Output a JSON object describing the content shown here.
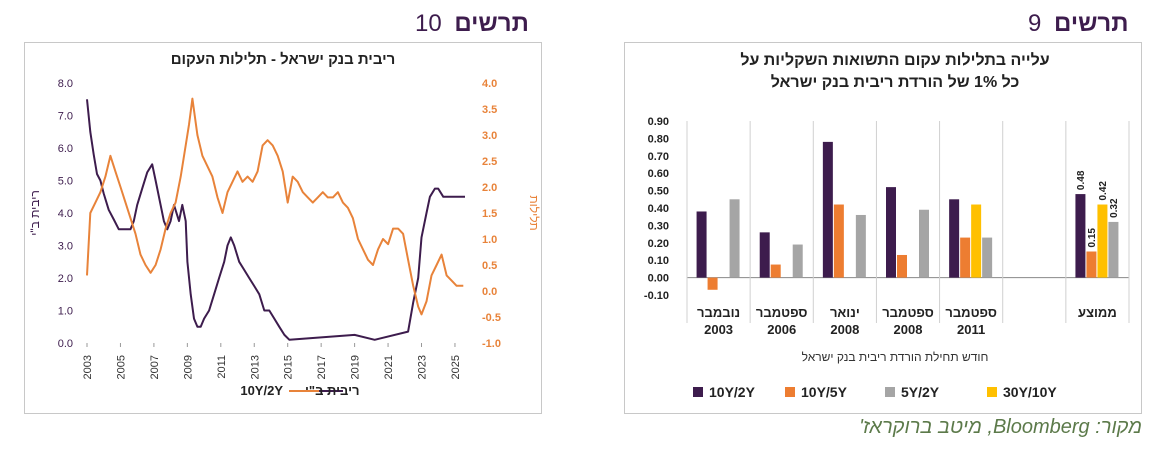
{
  "left_figure": {
    "title": "תרשים",
    "number": "10"
  },
  "right_figure": {
    "title": "תרשים",
    "number": "9"
  },
  "source": "מקור: Bloomberg, מיטב ברוקראז'",
  "chart_data": [
    {
      "type": "line",
      "title": "ריבית בנק ישראל - תלילות העקום",
      "ylabel": "ריבית ב\"י",
      "y2label": "תלילות",
      "x_ticks": [
        "2003",
        "2005",
        "2007",
        "2009",
        "2011",
        "2013",
        "2015",
        "2017",
        "2019",
        "2021",
        "2023",
        "2025"
      ],
      "ylim": [
        0,
        8
      ],
      "y_ticks": [
        "0.0",
        "1.0",
        "2.0",
        "3.0",
        "4.0",
        "5.0",
        "6.0",
        "7.0",
        "8.0"
      ],
      "y2lim": [
        -1,
        4
      ],
      "y2_ticks": [
        "-1.0",
        "-0.5",
        "0.0",
        "0.5",
        "1.0",
        "1.5",
        "2.0",
        "2.5",
        "3.0",
        "3.5",
        "4.0"
      ],
      "legend_position": "bottom",
      "grid": false,
      "series": [
        {
          "name": "ריבית ב\"י",
          "axis": "left",
          "color": "#3d1c4d",
          "points": [
            [
              2003.0,
              7.5
            ],
            [
              2003.2,
              6.5
            ],
            [
              2003.4,
              5.8
            ],
            [
              2003.6,
              5.2
            ],
            [
              2003.8,
              5.0
            ],
            [
              2004.0,
              4.6
            ],
            [
              2004.3,
              4.1
            ],
            [
              2004.6,
              3.8
            ],
            [
              2004.9,
              3.5
            ],
            [
              2005.6,
              3.5
            ],
            [
              2005.8,
              3.75
            ],
            [
              2006.0,
              4.25
            ],
            [
              2006.3,
              4.75
            ],
            [
              2006.6,
              5.25
            ],
            [
              2006.9,
              5.5
            ],
            [
              2007.1,
              5.0
            ],
            [
              2007.4,
              4.25
            ],
            [
              2007.6,
              3.75
            ],
            [
              2007.8,
              3.5
            ],
            [
              2008.0,
              3.75
            ],
            [
              2008.2,
              4.25
            ],
            [
              2008.5,
              3.75
            ],
            [
              2008.7,
              4.25
            ],
            [
              2008.9,
              3.75
            ],
            [
              2009.0,
              2.5
            ],
            [
              2009.2,
              1.5
            ],
            [
              2009.4,
              0.75
            ],
            [
              2009.6,
              0.5
            ],
            [
              2009.8,
              0.5
            ],
            [
              2010.0,
              0.75
            ],
            [
              2010.3,
              1.0
            ],
            [
              2010.6,
              1.5
            ],
            [
              2010.9,
              2.0
            ],
            [
              2011.2,
              2.5
            ],
            [
              2011.4,
              3.0
            ],
            [
              2011.6,
              3.25
            ],
            [
              2011.8,
              3.0
            ],
            [
              2012.1,
              2.5
            ],
            [
              2012.4,
              2.25
            ],
            [
              2012.7,
              2.0
            ],
            [
              2013.0,
              1.75
            ],
            [
              2013.3,
              1.5
            ],
            [
              2013.6,
              1.0
            ],
            [
              2013.9,
              1.0
            ],
            [
              2014.2,
              0.75
            ],
            [
              2014.5,
              0.5
            ],
            [
              2014.8,
              0.25
            ],
            [
              2015.1,
              0.1
            ],
            [
              2019.0,
              0.25
            ],
            [
              2020.2,
              0.1
            ],
            [
              2022.2,
              0.35
            ],
            [
              2022.5,
              1.25
            ],
            [
              2022.8,
              2.0
            ],
            [
              2023.0,
              3.25
            ],
            [
              2023.3,
              4.0
            ],
            [
              2023.5,
              4.5
            ],
            [
              2023.8,
              4.75
            ],
            [
              2024.0,
              4.75
            ],
            [
              2024.3,
              4.5
            ],
            [
              2025.6,
              4.5
            ]
          ]
        },
        {
          "name": "10Y/2Y",
          "axis": "right",
          "color": "#e8833a",
          "points": [
            [
              2003.0,
              0.3
            ],
            [
              2003.2,
              1.5
            ],
            [
              2003.5,
              1.7
            ],
            [
              2003.8,
              1.9
            ],
            [
              2004.1,
              2.2
            ],
            [
              2004.4,
              2.6
            ],
            [
              2004.7,
              2.3
            ],
            [
              2005.0,
              2.0
            ],
            [
              2005.3,
              1.7
            ],
            [
              2005.6,
              1.4
            ],
            [
              2005.9,
              1.1
            ],
            [
              2006.2,
              0.7
            ],
            [
              2006.5,
              0.5
            ],
            [
              2006.8,
              0.35
            ],
            [
              2007.1,
              0.5
            ],
            [
              2007.4,
              0.8
            ],
            [
              2007.7,
              1.2
            ],
            [
              2008.0,
              1.5
            ],
            [
              2008.3,
              1.7
            ],
            [
              2008.6,
              2.2
            ],
            [
              2008.9,
              2.8
            ],
            [
              2009.1,
              3.2
            ],
            [
              2009.3,
              3.7
            ],
            [
              2009.6,
              3.0
            ],
            [
              2009.9,
              2.6
            ],
            [
              2010.2,
              2.4
            ],
            [
              2010.5,
              2.2
            ],
            [
              2010.8,
              1.8
            ],
            [
              2011.1,
              1.5
            ],
            [
              2011.4,
              1.9
            ],
            [
              2011.7,
              2.1
            ],
            [
              2012.0,
              2.3
            ],
            [
              2012.3,
              2.1
            ],
            [
              2012.6,
              2.2
            ],
            [
              2012.9,
              2.1
            ],
            [
              2013.2,
              2.3
            ],
            [
              2013.5,
              2.8
            ],
            [
              2013.8,
              2.9
            ],
            [
              2014.1,
              2.8
            ],
            [
              2014.4,
              2.6
            ],
            [
              2014.7,
              2.3
            ],
            [
              2015.0,
              1.7
            ],
            [
              2015.3,
              2.2
            ],
            [
              2015.6,
              2.1
            ],
            [
              2015.9,
              1.9
            ],
            [
              2016.2,
              1.8
            ],
            [
              2016.5,
              1.7
            ],
            [
              2016.8,
              1.8
            ],
            [
              2017.1,
              1.9
            ],
            [
              2017.4,
              1.8
            ],
            [
              2017.7,
              1.8
            ],
            [
              2018.0,
              1.9
            ],
            [
              2018.3,
              1.7
            ],
            [
              2018.6,
              1.6
            ],
            [
              2018.9,
              1.4
            ],
            [
              2019.2,
              1.0
            ],
            [
              2019.5,
              0.8
            ],
            [
              2019.8,
              0.6
            ],
            [
              2020.1,
              0.5
            ],
            [
              2020.4,
              0.8
            ],
            [
              2020.7,
              1.0
            ],
            [
              2021.0,
              0.9
            ],
            [
              2021.3,
              1.2
            ],
            [
              2021.6,
              1.2
            ],
            [
              2021.9,
              1.1
            ],
            [
              2022.2,
              0.6
            ],
            [
              2022.5,
              0.1
            ],
            [
              2022.8,
              -0.3
            ],
            [
              2023.0,
              -0.45
            ],
            [
              2023.3,
              -0.2
            ],
            [
              2023.6,
              0.3
            ],
            [
              2023.9,
              0.5
            ],
            [
              2024.2,
              0.7
            ],
            [
              2024.5,
              0.3
            ],
            [
              2024.8,
              0.2
            ],
            [
              2025.1,
              0.1
            ],
            [
              2025.5,
              0.1
            ]
          ]
        }
      ],
      "legend": [
        {
          "label": "ריבית ב\"י",
          "color": "#3d1c4d"
        },
        {
          "label": "10Y/2Y",
          "color": "#e8833a"
        }
      ]
    },
    {
      "type": "bar",
      "title": [
        "עלייה בתלילות עקום התשואות השקליות על",
        "כל 1% של הורדת ריבית בנק ישראל"
      ],
      "xlabel": "חודש תחילת הורדת ריבית בנק ישראל",
      "ylim": [
        -0.1,
        0.9
      ],
      "y_ticks": [
        "-0.10",
        "0.00",
        "0.10",
        "0.20",
        "0.30",
        "0.40",
        "0.50",
        "0.60",
        "0.70",
        "0.80",
        "0.90"
      ],
      "grid": false,
      "legend_position": "bottom",
      "groups": [
        {
          "label": [
            "נובמבר",
            "2003"
          ],
          "values": [
            0.38,
            -0.07,
            null,
            0.45
          ]
        },
        {
          "label": [
            "ספטמבר",
            "2006"
          ],
          "values": [
            0.26,
            0.075,
            null,
            0.19
          ]
        },
        {
          "label": [
            "ינואר",
            "2008"
          ],
          "values": [
            0.78,
            0.42,
            null,
            0.36
          ]
        },
        {
          "label": [
            "ספטמבר",
            "2008"
          ],
          "values": [
            0.52,
            0.13,
            null,
            0.39
          ]
        },
        {
          "label": [
            "ספטמבר",
            "2011"
          ],
          "values": [
            0.45,
            0.23,
            0.42,
            0.23
          ]
        },
        {
          "label": [
            "",
            ""
          ],
          "values": []
        },
        {
          "label": [
            "ממוצע",
            ""
          ],
          "values": [
            0.48,
            0.15,
            0.42,
            0.32
          ],
          "data_labels": [
            "0.48",
            "0.15",
            "0.42",
            "0.32"
          ]
        }
      ],
      "series": [
        {
          "name": "10Y/2Y",
          "color": "#3d1c4d"
        },
        {
          "name": "10Y/5Y",
          "color": "#ed7d31"
        },
        {
          "name": "30Y/10Y",
          "color": "#ffc000"
        },
        {
          "name": "5Y/2Y",
          "color": "#a5a5a5"
        }
      ],
      "legend_order": [
        "10Y/2Y",
        "10Y/5Y",
        "5Y/2Y",
        "30Y/10Y"
      ]
    }
  ]
}
